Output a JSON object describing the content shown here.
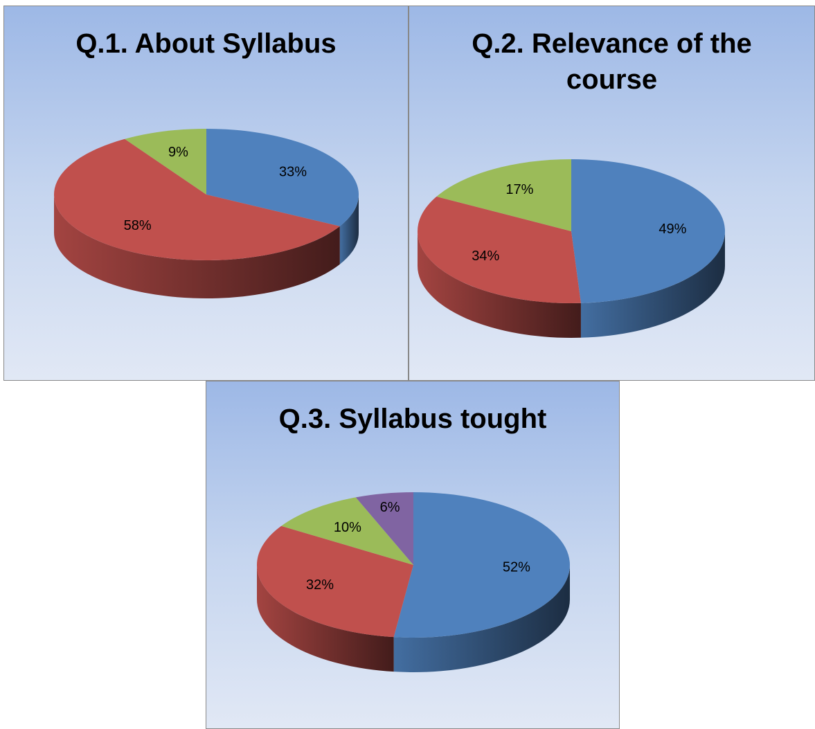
{
  "chart_data": [
    {
      "type": "pie",
      "title": "Q.1. About Syllabus",
      "values": [
        33,
        58,
        9
      ],
      "value_labels": [
        "33%",
        "58%",
        "9%"
      ],
      "colors": [
        "#4f81bd",
        "#c0504d",
        "#9bbb59"
      ]
    },
    {
      "type": "pie",
      "title": "Q.2. Relevance of the course",
      "values": [
        49,
        34,
        17
      ],
      "value_labels": [
        "49%",
        "34%",
        "17%"
      ],
      "colors": [
        "#4f81bd",
        "#c0504d",
        "#9bbb59"
      ]
    },
    {
      "type": "pie",
      "title": "Q.3. Syllabus tought",
      "values": [
        52,
        32,
        10,
        6
      ],
      "value_labels": [
        "52%",
        "32%",
        "10%",
        "6%"
      ],
      "colors": [
        "#4f81bd",
        "#c0504d",
        "#9bbb59",
        "#8064a2"
      ]
    }
  ]
}
